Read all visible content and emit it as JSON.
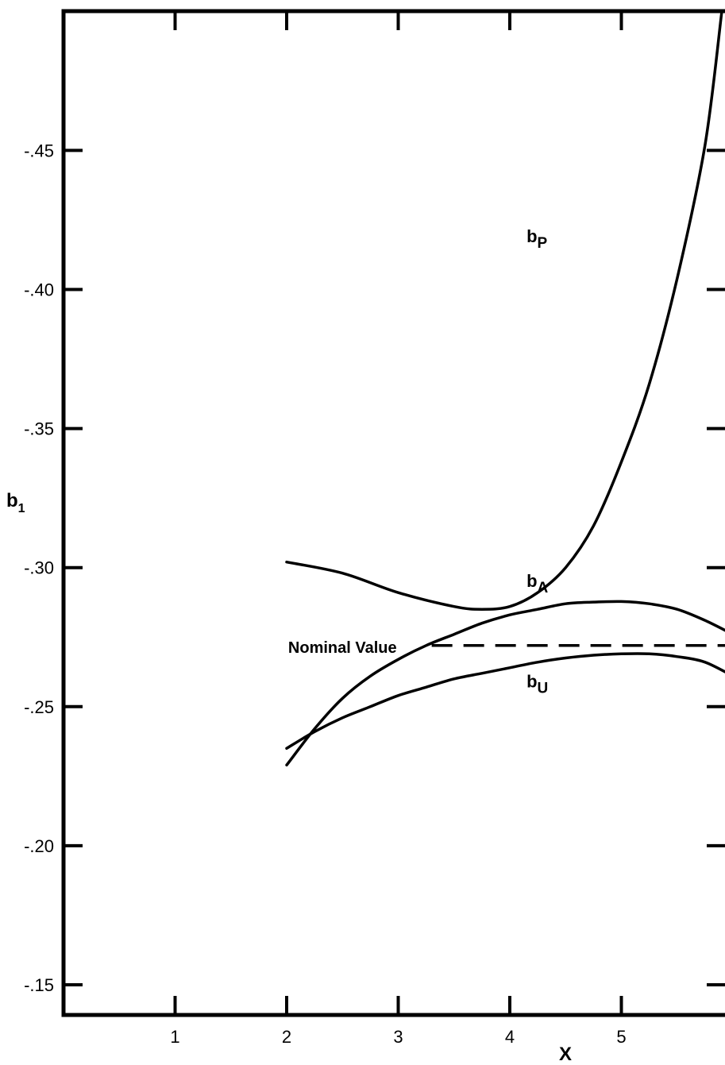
{
  "chart_data": {
    "type": "line",
    "title": "",
    "xlabel": "X",
    "ylabel_main": "b",
    "ylabel_sub": "1",
    "xlim": [
      0,
      6.0
    ],
    "ylim": [
      0.14,
      0.5
    ],
    "y_axis_inverted_sign_labels": true,
    "grid": false,
    "x_ticks": [
      {
        "value": 1,
        "label": "1"
      },
      {
        "value": 2,
        "label": "2"
      },
      {
        "value": 3,
        "label": "3"
      },
      {
        "value": 4,
        "label": "4"
      },
      {
        "value": 5,
        "label": "5"
      }
    ],
    "y_ticks": [
      {
        "value": 0.15,
        "label": "-.15"
      },
      {
        "value": 0.2,
        "label": "-.20"
      },
      {
        "value": 0.25,
        "label": "-.25"
      },
      {
        "value": 0.3,
        "label": "-.30"
      },
      {
        "value": 0.35,
        "label": "-.35"
      },
      {
        "value": 0.4,
        "label": "-.40"
      },
      {
        "value": 0.45,
        "label": "-.45"
      }
    ],
    "series": [
      {
        "name": "b",
        "subscript": "P",
        "x": [
          2.0,
          2.5,
          3.0,
          3.5,
          3.75,
          4.0,
          4.25,
          4.5,
          4.75,
          5.0,
          5.25,
          5.5,
          5.75,
          5.9
        ],
        "y": [
          0.302,
          0.298,
          0.291,
          0.286,
          0.285,
          0.286,
          0.291,
          0.3,
          0.315,
          0.338,
          0.366,
          0.404,
          0.452,
          0.5
        ],
        "label_at": [
          4.15,
          0.417
        ]
      },
      {
        "name": "b",
        "subscript": "A",
        "x": [
          2.0,
          2.25,
          2.5,
          2.75,
          3.0,
          3.25,
          3.5,
          3.75,
          4.0,
          4.25,
          4.5,
          4.75,
          5.0,
          5.25,
          5.5,
          5.75,
          6.0
        ],
        "y": [
          0.229,
          0.242,
          0.253,
          0.261,
          0.267,
          0.272,
          0.276,
          0.28,
          0.283,
          0.285,
          0.287,
          0.2876,
          0.2878,
          0.287,
          0.285,
          0.281,
          0.276
        ],
        "label_at": [
          4.15,
          0.293
        ]
      },
      {
        "name": "b",
        "subscript": "U",
        "x": [
          2.0,
          2.25,
          2.5,
          2.75,
          3.0,
          3.25,
          3.5,
          3.75,
          4.0,
          4.25,
          4.5,
          4.75,
          5.0,
          5.25,
          5.5,
          5.75,
          6.0
        ],
        "y": [
          0.235,
          0.241,
          0.246,
          0.25,
          0.254,
          0.257,
          0.26,
          0.262,
          0.264,
          0.266,
          0.2675,
          0.2685,
          0.269,
          0.269,
          0.268,
          0.266,
          0.261
        ],
        "label_at": [
          4.15,
          0.257
        ]
      }
    ],
    "reference_lines": [
      {
        "label": "Nominal Value",
        "y": 0.272,
        "x_from": 3.3,
        "x_to": 6.0,
        "style": "dashed"
      }
    ]
  }
}
